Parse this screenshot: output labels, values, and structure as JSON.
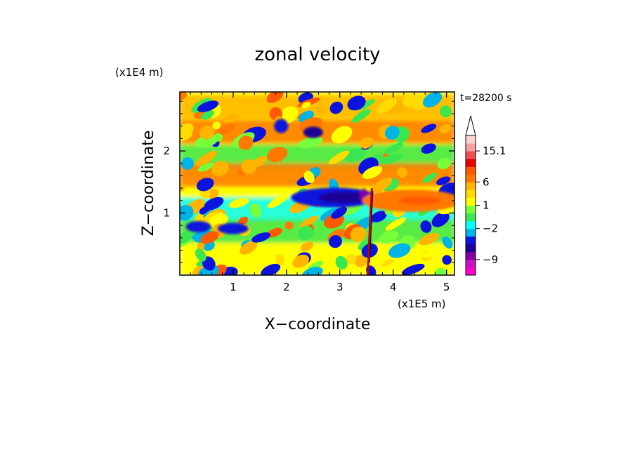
{
  "chart_data": {
    "type": "heatmap",
    "title": "zonal velocity",
    "time_label": "t=28200 s",
    "xlabel": "X−coordinate",
    "ylabel": "Z−coordinate",
    "x_unit": "(x1E5 m)",
    "z_unit": "(x1E4 m)",
    "xlim": [
      0,
      5.15
    ],
    "zlim": [
      0,
      2.95
    ],
    "x_ticks": [
      "1",
      "2",
      "3",
      "4",
      "5"
    ],
    "x_tick_values": [
      1,
      2,
      3,
      4,
      5
    ],
    "z_ticks": [
      "1",
      "2"
    ],
    "z_tick_values": [
      1,
      2
    ],
    "colorbar": {
      "labels": [
        "15.1",
        "6",
        "1",
        "−2",
        "−9"
      ],
      "colors": [
        "#ff00c8",
        "#c810c8",
        "#8200a0",
        "#1e0096",
        "#0a14dc",
        "#00b4e6",
        "#00ffff",
        "#3ce650",
        "#78ff3c",
        "#ffff00",
        "#ffdc00",
        "#ffb400",
        "#ff7800",
        "#ff5a00",
        "#e60000",
        "#f05050",
        "#f5a0a0",
        "#fad2d2"
      ],
      "extend": "max"
    },
    "features": [
      {
        "name": "negative jet",
        "x": [
          2.2,
          3.5
        ],
        "z": [
          1.0,
          1.5
        ],
        "u_sign": "negative"
      },
      {
        "name": "positive jet",
        "x": [
          3.6,
          5.1
        ],
        "z": [
          0.9,
          1.5
        ],
        "u_sign": "positive"
      },
      {
        "name": "vertical shear line",
        "x": [
          3.5,
          3.6
        ],
        "z": [
          0,
          1.4
        ]
      }
    ]
  }
}
